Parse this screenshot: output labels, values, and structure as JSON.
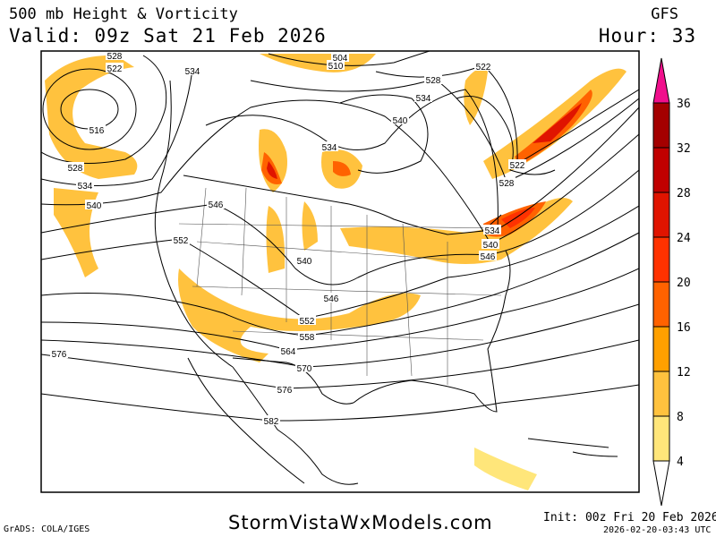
{
  "header": {
    "title": "500 mb Height & Vorticity",
    "valid": "Valid: 09z Sat 21 Feb 2026",
    "model": "GFS",
    "hour": "Hour: 33"
  },
  "footer": {
    "grads": "GrADS: COLA/IGES",
    "site": "StormVistaWxModels.com",
    "init": "Init: 00z Fri 20 Feb 2026",
    "timestamp": "2026-02-20-03:43 UTC"
  },
  "colorbar": {
    "levels": [
      "4",
      "8",
      "12",
      "16",
      "20",
      "24",
      "28",
      "32",
      "36"
    ],
    "colors": [
      "#ffe67a",
      "#ffc23e",
      "#ffa000",
      "#ff6200",
      "#ff3200",
      "#e01400",
      "#c00000",
      "#a40000"
    ],
    "over_color": "#f0108c",
    "under_color": "#ffffff"
  },
  "map": {
    "height_contour_labels": [
      "528",
      "522",
      "516",
      "528",
      "534",
      "540",
      "534",
      "510",
      "504",
      "522",
      "528",
      "534",
      "540",
      "534",
      "546",
      "552",
      "540",
      "546",
      "552",
      "558",
      "564",
      "570",
      "576",
      "576",
      "582",
      "522",
      "528",
      "534",
      "540",
      "546"
    ]
  }
}
